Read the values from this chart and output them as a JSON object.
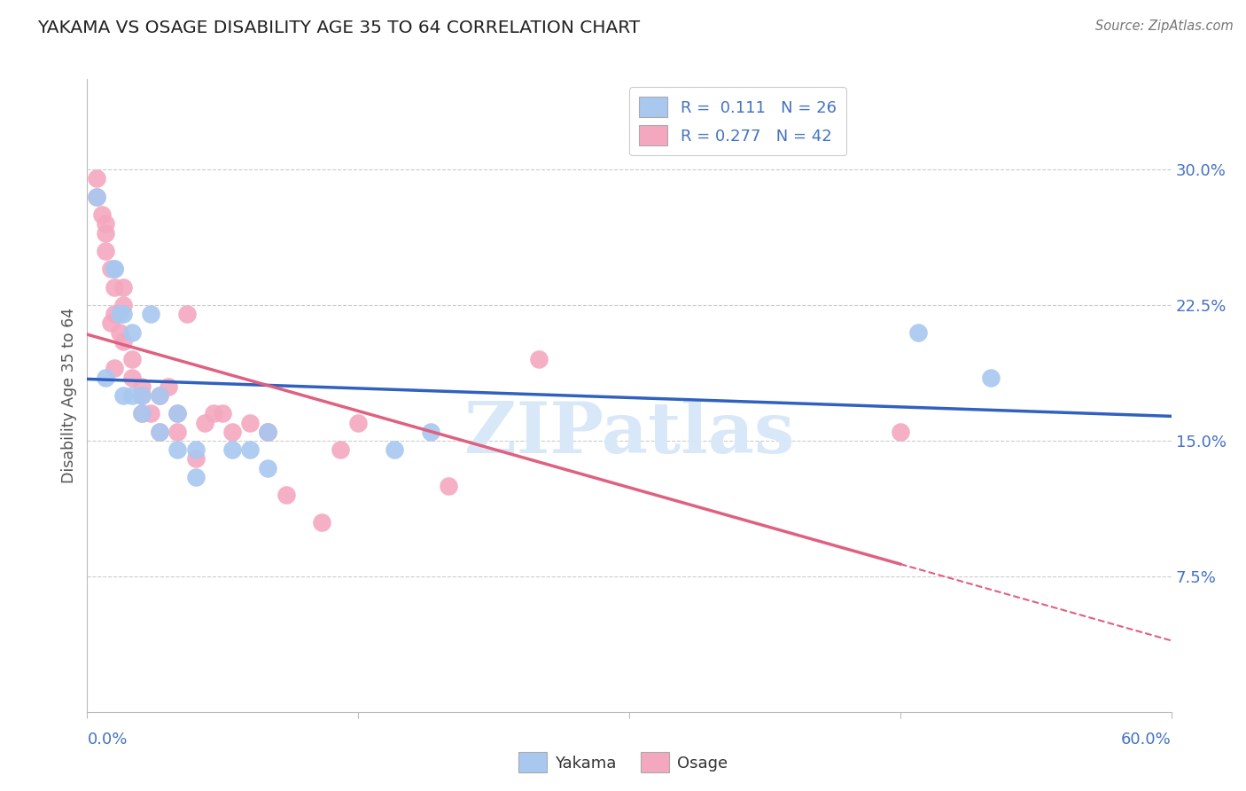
{
  "title": "YAKAMA VS OSAGE DISABILITY AGE 35 TO 64 CORRELATION CHART",
  "source": "Source: ZipAtlas.com",
  "ylabel": "Disability Age 35 to 64",
  "xlim": [
    0.0,
    0.6
  ],
  "ylim": [
    0.0,
    0.35
  ],
  "yticks": [
    0.075,
    0.15,
    0.225,
    0.3
  ],
  "ytick_labels": [
    "7.5%",
    "15.0%",
    "22.5%",
    "30.0%"
  ],
  "legend_blue_r": "R =  0.111",
  "legend_blue_n": "N = 26",
  "legend_pink_r": "R = 0.277",
  "legend_pink_n": "N = 42",
  "legend_label1": "Yakama",
  "legend_label2": "Osage",
  "blue_color": "#A8C8F0",
  "pink_color": "#F4A8C0",
  "blue_line_color": "#3060C0",
  "pink_line_color": "#E06080",
  "background_color": "#FFFFFF",
  "grid_color": "#CCCCCC",
  "watermark": "ZIPatlas",
  "yakama_x": [
    0.005,
    0.01,
    0.015,
    0.015,
    0.018,
    0.02,
    0.02,
    0.025,
    0.025,
    0.03,
    0.03,
    0.035,
    0.04,
    0.04,
    0.05,
    0.05,
    0.06,
    0.06,
    0.08,
    0.09,
    0.1,
    0.1,
    0.17,
    0.19,
    0.46,
    0.5
  ],
  "yakama_y": [
    0.285,
    0.185,
    0.245,
    0.245,
    0.22,
    0.175,
    0.22,
    0.21,
    0.175,
    0.165,
    0.175,
    0.22,
    0.155,
    0.175,
    0.145,
    0.165,
    0.145,
    0.13,
    0.145,
    0.145,
    0.155,
    0.135,
    0.145,
    0.155,
    0.21,
    0.185
  ],
  "osage_x": [
    0.005,
    0.005,
    0.008,
    0.01,
    0.01,
    0.01,
    0.013,
    0.013,
    0.015,
    0.015,
    0.015,
    0.018,
    0.02,
    0.02,
    0.02,
    0.025,
    0.025,
    0.03,
    0.03,
    0.03,
    0.035,
    0.04,
    0.04,
    0.045,
    0.05,
    0.05,
    0.055,
    0.06,
    0.065,
    0.07,
    0.075,
    0.08,
    0.09,
    0.1,
    0.1,
    0.11,
    0.13,
    0.14,
    0.15,
    0.2,
    0.25,
    0.45
  ],
  "osage_y": [
    0.295,
    0.285,
    0.275,
    0.265,
    0.255,
    0.27,
    0.215,
    0.245,
    0.235,
    0.22,
    0.19,
    0.21,
    0.235,
    0.225,
    0.205,
    0.195,
    0.185,
    0.18,
    0.175,
    0.165,
    0.165,
    0.175,
    0.155,
    0.18,
    0.165,
    0.155,
    0.22,
    0.14,
    0.16,
    0.165,
    0.165,
    0.155,
    0.16,
    0.155,
    0.155,
    0.12,
    0.105,
    0.145,
    0.16,
    0.125,
    0.195,
    0.155
  ]
}
